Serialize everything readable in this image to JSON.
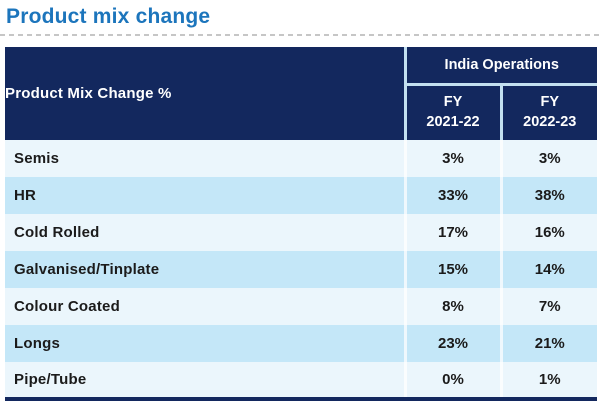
{
  "page": {
    "title": "Product mix change"
  },
  "colors": {
    "title_blue": "#1C75BC",
    "header_navy": "#13285E",
    "row_light": "#EBF6FC",
    "row_blue": "#C4E7F8",
    "header_border_blue": "#C3E0F0",
    "underline_gray": "#C6C6C6"
  },
  "table": {
    "corner_header": "Product Mix Change %",
    "group_header": "India Operations",
    "col1": {
      "line1": "FY",
      "line2": "2021-22"
    },
    "col2": {
      "line1": "FY",
      "line2": "2022-23"
    },
    "rows": [
      {
        "label": "Semis",
        "fy2122": "3%",
        "fy2223": "3%"
      },
      {
        "label": "HR",
        "fy2122": "33%",
        "fy2223": "38%"
      },
      {
        "label": "Cold Rolled",
        "fy2122": "17%",
        "fy2223": "16%"
      },
      {
        "label": "Galvanised/Tinplate",
        "fy2122": "15%",
        "fy2223": "14%"
      },
      {
        "label": "Colour Coated",
        "fy2122": "8%",
        "fy2223": "7%"
      },
      {
        "label": "Longs",
        "fy2122": "23%",
        "fy2223": "21%"
      },
      {
        "label": "Pipe/Tube",
        "fy2122": "0%",
        "fy2223": "1%"
      }
    ]
  },
  "chart_data": {
    "type": "table",
    "title": "Product mix change",
    "corner_header": "Product Mix Change %",
    "group_header": "India Operations",
    "categories": [
      "Semis",
      "HR",
      "Cold Rolled",
      "Galvanised/Tinplate",
      "Colour Coated",
      "Longs",
      "Pipe/Tube"
    ],
    "series": [
      {
        "name": "FY 2021-22",
        "unit": "%",
        "values": [
          3,
          33,
          17,
          15,
          8,
          23,
          0
        ]
      },
      {
        "name": "FY 2022-23",
        "unit": "%",
        "values": [
          3,
          38,
          16,
          14,
          7,
          21,
          1
        ]
      }
    ]
  }
}
